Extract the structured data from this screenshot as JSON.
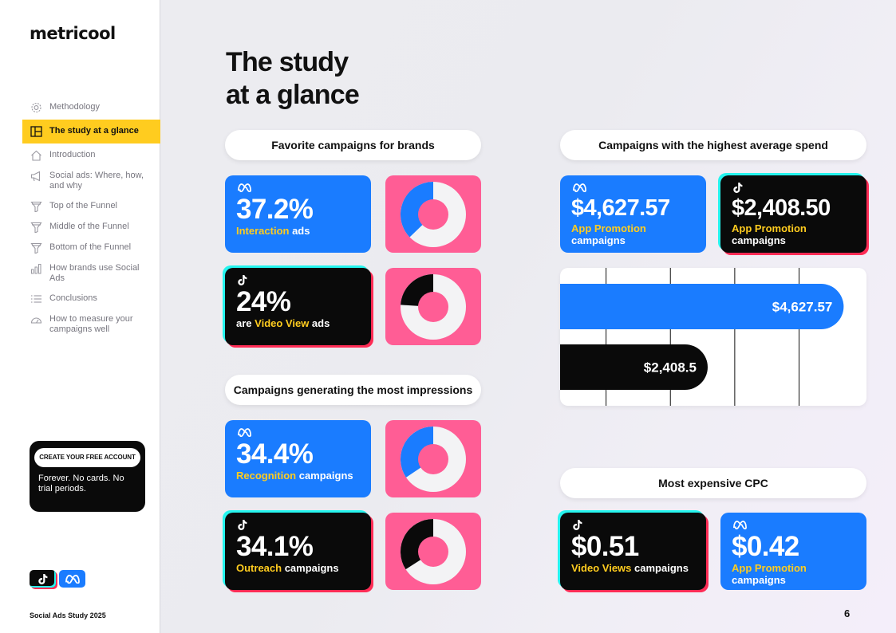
{
  "brand": {
    "logo_text": "metricool"
  },
  "sidebar": {
    "items": [
      {
        "label": "Methodology",
        "icon": "gear-icon",
        "active": false
      },
      {
        "label": "The study at a glance",
        "icon": "layout-icon",
        "active": true
      },
      {
        "label": "Introduction",
        "icon": "home-icon",
        "active": false
      },
      {
        "label": "Social ads: Where, how, and why",
        "icon": "megaphone-icon",
        "active": false
      },
      {
        "label": "Top of the Funnel",
        "icon": "funnel-icon",
        "active": false
      },
      {
        "label": "Middle of the Funnel",
        "icon": "funnel-icon",
        "active": false
      },
      {
        "label": "Bottom of the Funnel",
        "icon": "funnel-icon",
        "active": false
      },
      {
        "label": "How brands use Social Ads",
        "icon": "bar-chart-icon",
        "active": false
      },
      {
        "label": "Conclusions",
        "icon": "list-icon",
        "active": false
      },
      {
        "label": "How to measure your campaigns well",
        "icon": "gauge-icon",
        "active": false
      }
    ],
    "cta": {
      "button": "CREATE YOUR FREE ACCOUNT",
      "text": "Forever. No cards. No trial periods."
    },
    "footer": "Social Ads Study 2025"
  },
  "main": {
    "title_line1": "The study",
    "title_line2": "at a glance",
    "page_number": "6",
    "favorite": {
      "heading": "Favorite campaigns for brands",
      "meta": {
        "value": "37.2%",
        "highlight": "Interaction",
        "rest": " ads",
        "fraction": 0.372
      },
      "tiktok": {
        "value": "24%",
        "prefix": "are ",
        "highlight": "Video View",
        "rest": " ads",
        "fraction": 0.24
      }
    },
    "impressions": {
      "heading": "Campaigns generating the most impressions",
      "meta": {
        "value": "34.4%",
        "highlight": "Recognition",
        "rest": " campaigns",
        "fraction": 0.344
      },
      "tiktok": {
        "value": "34.1%",
        "highlight": "Outreach",
        "rest": " campaigns",
        "fraction": 0.341
      }
    },
    "spend": {
      "heading": "Campaigns with the highest average spend",
      "meta": {
        "value": "$4,627.57",
        "highlight": "App Promotion",
        "rest": "campaigns"
      },
      "tiktok": {
        "value": "$2,408.50",
        "highlight": "App Promotion",
        "rest": "campaigns"
      }
    },
    "cpc": {
      "heading": "Most expensive CPC",
      "tiktok": {
        "value": "$0.51",
        "highlight": "Video Views",
        "rest": " campaigns"
      },
      "meta": {
        "value": "$0.42",
        "highlight": "App Promotion",
        "rest": "campaigns"
      }
    }
  },
  "colors": {
    "meta_blue": "#1a7cff",
    "tiktok_black": "#0a0a0a",
    "highlight_yellow": "#ffcc1f",
    "donut_pink": "#ff5d95",
    "tiktok_cyan": "#25f4ee",
    "tiktok_red": "#fe2c55"
  },
  "chart_data": {
    "type": "bar",
    "orientation": "horizontal",
    "categories": [
      "Meta",
      "TikTok"
    ],
    "values": [
      4627.57,
      2408.5
    ],
    "value_labels": [
      "$4,627.57",
      "$2,408.5"
    ],
    "bar_colors": [
      "#1a7cff",
      "#0a0a0a"
    ],
    "xlim": [
      0,
      5000
    ],
    "grid": true,
    "gridline_values": [
      750,
      1800,
      2850,
      3900
    ],
    "title": "",
    "xlabel": "",
    "ylabel": ""
  }
}
